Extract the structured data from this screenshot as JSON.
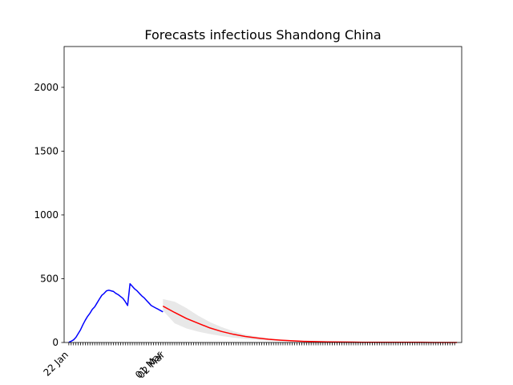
{
  "chart_data": {
    "type": "line",
    "title": "Forecasts infectious Shandong China",
    "xlabel": "",
    "ylabel": "",
    "ylim": [
      0,
      2320
    ],
    "xlim": [
      -2,
      167
    ],
    "yticks": [
      0,
      500,
      1000,
      1500,
      2000
    ],
    "xtick_labels": [
      {
        "day": 0,
        "label": "22 Jan"
      },
      {
        "day": 40,
        "label": "01 Mar"
      },
      {
        "day": 41,
        "label": "02 Mar"
      }
    ],
    "minor_tick_count": 165,
    "colors": {
      "observed": "#0000ff",
      "forecast": "#ff0000",
      "band": "#e8e8e8"
    },
    "series": [
      {
        "style": "observed",
        "x": [
          0,
          1,
          2,
          3,
          4,
          5,
          6,
          7,
          8,
          9,
          10,
          11,
          12,
          13,
          14,
          15,
          16,
          17,
          18,
          19,
          20,
          21,
          22,
          23,
          24,
          25,
          26,
          27,
          28,
          29,
          30,
          31,
          32,
          33,
          34,
          35,
          36,
          37,
          38,
          39,
          40
        ],
        "values": [
          2,
          10,
          20,
          40,
          70,
          100,
          140,
          175,
          205,
          230,
          260,
          280,
          310,
          340,
          370,
          385,
          405,
          410,
          405,
          400,
          385,
          375,
          360,
          345,
          320,
          290,
          460,
          440,
          420,
          405,
          385,
          365,
          350,
          330,
          310,
          290,
          280,
          270,
          260,
          250,
          240
        ]
      },
      {
        "style": "forecast",
        "x": [
          40,
          45,
          50,
          55,
          60,
          65,
          70,
          75,
          80,
          85,
          90,
          95,
          100,
          105,
          110,
          115,
          120,
          125,
          130,
          135,
          140,
          145,
          150,
          155,
          160,
          165
        ],
        "values": [
          285,
          235,
          188,
          150,
          114,
          86,
          64,
          47,
          35,
          25,
          18,
          13,
          9,
          7,
          5,
          4,
          3,
          2,
          2,
          1,
          1,
          1,
          1,
          0,
          0,
          0
        ]
      }
    ],
    "band": {
      "x": [
        40,
        45,
        50,
        55,
        60,
        65,
        70,
        75,
        80,
        85,
        90,
        95,
        100,
        105,
        110,
        115,
        120,
        125,
        130,
        135,
        140,
        145,
        150,
        155,
        160,
        165
      ],
      "upper": [
        340,
        320,
        270,
        210,
        160,
        120,
        88,
        62,
        46,
        33,
        24,
        17,
        12,
        9,
        7,
        5,
        4,
        3,
        2,
        2,
        1,
        1,
        1,
        1,
        0,
        0
      ],
      "lower": [
        250,
        150,
        110,
        85,
        66,
        50,
        38,
        28,
        21,
        15,
        11,
        8,
        6,
        4,
        3,
        2,
        2,
        1,
        1,
        1,
        0,
        0,
        0,
        0,
        0,
        0
      ]
    }
  }
}
